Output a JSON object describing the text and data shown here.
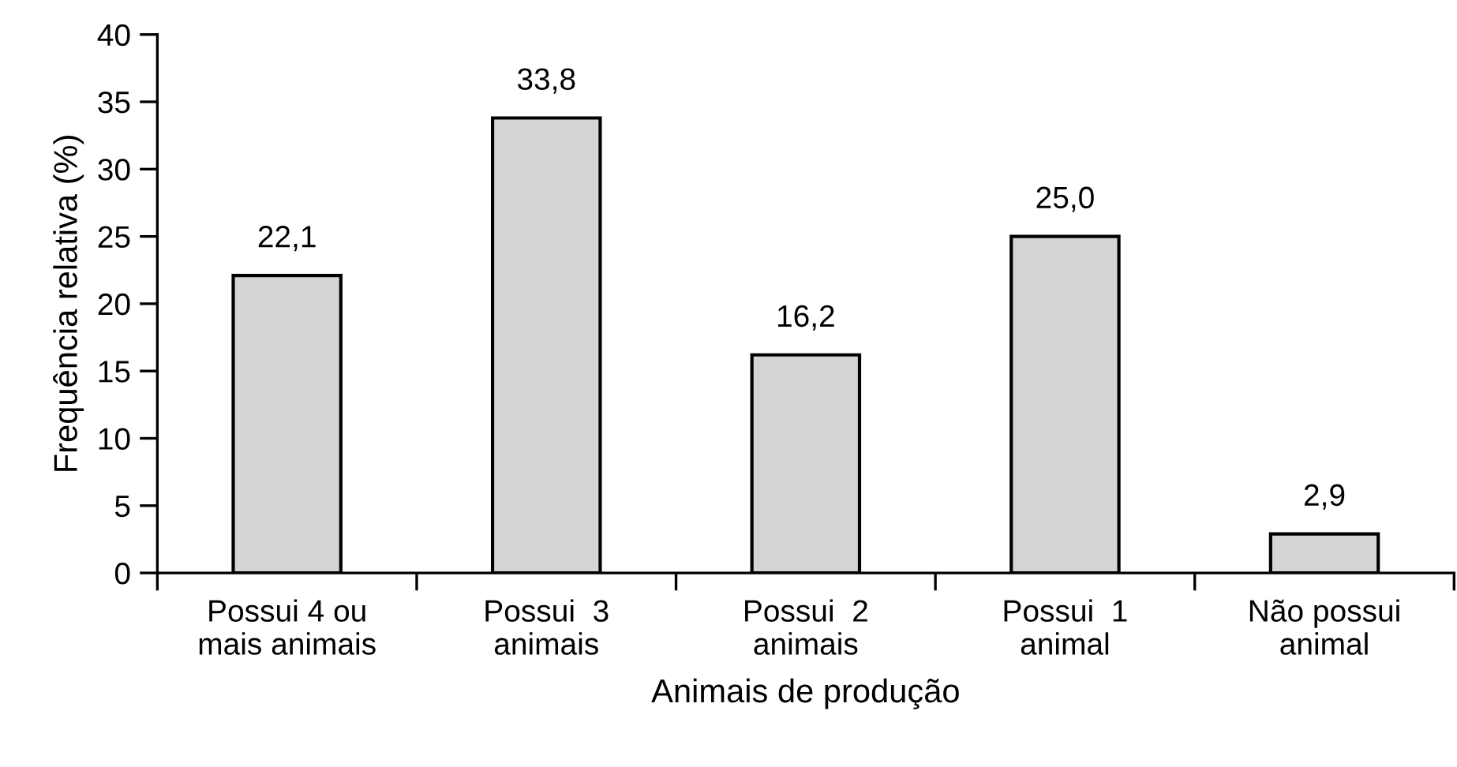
{
  "chart_data": {
    "type": "bar",
    "xlabel": "Animais de produção",
    "ylabel": "Frequência relativa (%)",
    "categories": [
      "Possui 4 ou\nmais animais",
      "Possui  3\nanimais",
      "Possui  2\nanimais",
      "Possui  1\nanimal",
      "Não possui\nanimal"
    ],
    "values": [
      22.1,
      33.8,
      16.2,
      25.0,
      2.9
    ],
    "value_labels": [
      "22,1",
      "33,8",
      "16,2",
      "25,0",
      "2,9"
    ],
    "color": "#d4d4d4",
    "ylim": [
      0,
      40
    ],
    "yticks": [
      0,
      5,
      10,
      15,
      20,
      25,
      30,
      35,
      40
    ]
  }
}
